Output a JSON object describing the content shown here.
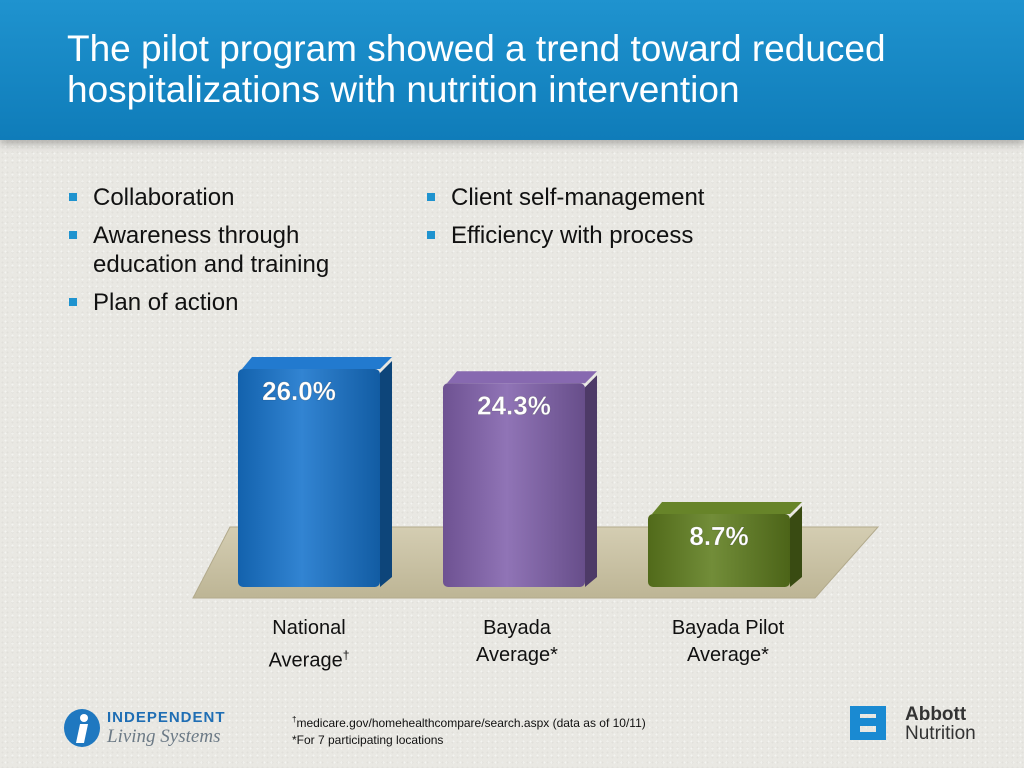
{
  "title": "The pilot program showed a trend toward reduced hospitalizations with nutrition intervention",
  "bullets_left": [
    "Collaboration",
    "Awareness through education and training",
    "Plan of action"
  ],
  "bullets_right": [
    "Client self-management",
    "Efficiency with process"
  ],
  "chart_data": {
    "type": "bar",
    "categories": [
      "National Average†",
      "Bayada Average*",
      "Bayada Pilot Average*"
    ],
    "category_lines": [
      [
        "National",
        "Average",
        "†"
      ],
      [
        "Bayada",
        "Average*",
        ""
      ],
      [
        "Bayada Pilot",
        "Average*",
        ""
      ]
    ],
    "values": [
      26.0,
      24.3,
      8.7
    ],
    "data_labels": [
      "26.0%",
      "24.3%",
      "8.7%"
    ],
    "colors": [
      "#1673cc",
      "#8161ac",
      "#5f7d1e"
    ],
    "unit": "%",
    "ylim": [
      0,
      26.0
    ],
    "grid": false,
    "legend": "none"
  },
  "footnotes": {
    "dagger": "†",
    "note1": "medicare.gov/homehealthcompare/search.aspx (data as of 10/11)",
    "note2": "*For 7 participating locations"
  },
  "logos": {
    "left_line1": "INDEPENDENT",
    "left_line2": "Living Systems",
    "right_line1": "Abbott",
    "right_line2": "Nutrition"
  },
  "colors": {
    "header": "#1587c6",
    "bullet": "#1f93cf",
    "floor": "#c9c2a6"
  }
}
